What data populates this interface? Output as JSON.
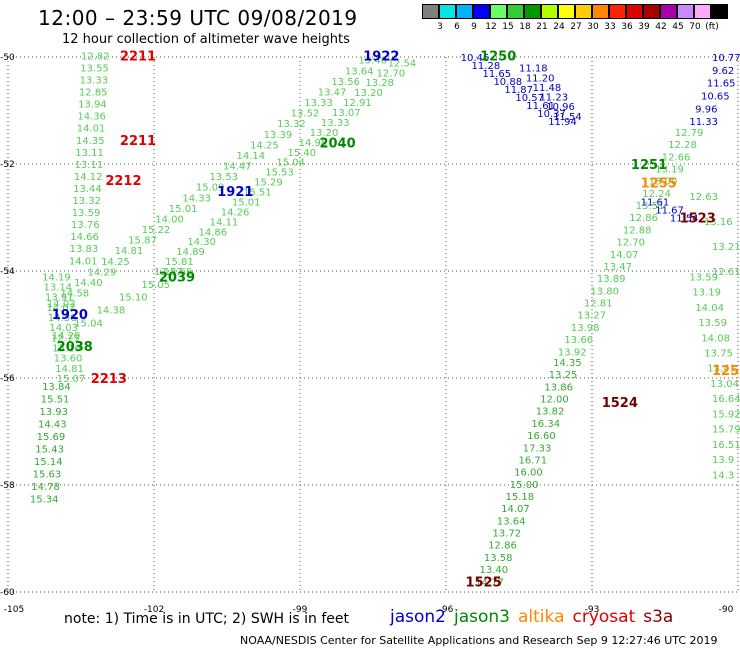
{
  "title": "12:00 – 23:59 UTC 09/08/2019",
  "subtitle": "12 hour collection of altimeter wave heights",
  "colorbar": {
    "colors": [
      "#7f7f7f",
      "#00e5e5",
      "#00b2ff",
      "#0000ff",
      "#66ff66",
      "#33cc33",
      "#009900",
      "#b3ff00",
      "#ffff00",
      "#ffcc00",
      "#ff8800",
      "#ff2200",
      "#dd0000",
      "#aa0000",
      "#aa00aa",
      "#cc88ff",
      "#ffaaff",
      "#000000"
    ],
    "labels": [
      "3",
      "6",
      "9",
      "12",
      "15",
      "18",
      "21",
      "24",
      "27",
      "30",
      "33",
      "36",
      "39",
      "42",
      "45",
      "70",
      "(ft)"
    ]
  },
  "axes": {
    "lon_labels": [
      "-105",
      "-102",
      "-99",
      "-96",
      "-93",
      "-90"
    ],
    "lat_labels": [
      "-50",
      "-52",
      "-54",
      "-56",
      "-58",
      "-60"
    ]
  },
  "track_labels": [
    {
      "text": "2211",
      "color": "#e00000",
      "lon": -102.7,
      "lat": -49.97
    },
    {
      "text": "2211",
      "color": "#e00000",
      "lon": -102.7,
      "lat": -51.55
    },
    {
      "text": "2212",
      "color": "#e00000",
      "lon": -103.0,
      "lat": -52.3
    },
    {
      "text": "2213",
      "color": "#e00000",
      "lon": -103.3,
      "lat": -56.0
    },
    {
      "text": "1922",
      "color": "#0000cc",
      "lon": -97.7,
      "lat": -49.97
    },
    {
      "text": "1921",
      "color": "#0000cc",
      "lon": -100.7,
      "lat": -52.5
    },
    {
      "text": "1920",
      "color": "#0000cc",
      "lon": -104.1,
      "lat": -54.8
    },
    {
      "text": "2040",
      "color": "#008800",
      "lon": -98.6,
      "lat": -51.6
    },
    {
      "text": "2039",
      "color": "#008800",
      "lon": -101.9,
      "lat": -54.1
    },
    {
      "text": "2038",
      "color": "#008800",
      "lon": -104.0,
      "lat": -55.4
    },
    {
      "text": "1250",
      "color": "#008800",
      "lon": -95.3,
      "lat": -49.97
    },
    {
      "text": "1251",
      "color": "#008800",
      "lon": -92.2,
      "lat": -52.0
    },
    {
      "text": "1255",
      "color": "#ff8800",
      "lon": -92.0,
      "lat": -52.35
    },
    {
      "text": "1523",
      "color": "#770000",
      "lon": -91.2,
      "lat": -53.0
    },
    {
      "text": "1524",
      "color": "#770000",
      "lon": -92.8,
      "lat": -56.45
    },
    {
      "text": "1525",
      "color": "#770000",
      "lon": -95.6,
      "lat": -59.8
    },
    {
      "text": "125",
      "color": "#ff8800",
      "lon": -90.5,
      "lat": -55.85
    }
  ],
  "tracks": [
    {
      "name": "col-A",
      "color": "#55cc55",
      "lon0": -103.5,
      "lat0": -49.97,
      "lon1": -103.75,
      "lat1": -53.8,
      "values": [
        "12.82",
        "13.55",
        "13.33",
        "12.85",
        "13.94",
        "14.36",
        "14.01",
        "14.35",
        "13.11",
        "13.11",
        "14.12",
        "13.44",
        "13.32",
        "13.59",
        "13.76",
        "14.66",
        "13.83",
        "14.01"
      ]
    },
    {
      "name": "col-B",
      "color": "#55cc55",
      "lon0": -104.3,
      "lat0": -54.1,
      "lon1": -104.0,
      "lat1": -56.0,
      "values": [
        "14.19",
        "13.14",
        "13.91",
        "14.02",
        "14.50",
        "14.03",
        "12.75",
        "15.16",
        "13.60",
        "14.81",
        "15.07"
      ]
    },
    {
      "name": "col-C",
      "color": "#33aa33",
      "lon0": -104.3,
      "lat0": -56.15,
      "lon1": -104.55,
      "lat1": -58.25,
      "values": [
        "13.84",
        "15.51",
        "13.93",
        "14.43",
        "15.69",
        "15.43",
        "15.14",
        "15.63",
        "14.78",
        "15.34"
      ]
    },
    {
      "name": "diag-1",
      "color": "#55cc55",
      "lon0": -97.8,
      "lat0": -50.05,
      "lon1": -104.2,
      "lat1": -54.6,
      "values": [
        "13.48",
        "13.64",
        "13.56",
        "13.47",
        "13.33",
        "13.52",
        "13.32",
        "13.39",
        "14.25",
        "14.14",
        "14.47",
        "13.53",
        "15.09",
        "14.33",
        "15.01",
        "14.00",
        "15.22",
        "15.87",
        "14.81",
        "14.25",
        "14.29",
        "14.40",
        "14.58",
        "14.03"
      ]
    },
    {
      "name": "diag-2",
      "color": "#55cc55",
      "lon0": -97.2,
      "lat0": -50.1,
      "lon1": -102.0,
      "lat1": -54.0,
      "values": [
        "12.54",
        "12.70",
        "13.28",
        "13.20",
        "12.91",
        "13.07",
        "13.33",
        "13.20",
        "14.98",
        "15.40",
        "15.04",
        "15.53",
        "15.29",
        "15.51",
        "15.01",
        "14.26",
        "14.11",
        "14.86",
        "14.30",
        "14.89",
        "15.81",
        "12.57"
      ]
    },
    {
      "name": "diag-3",
      "color": "#55cc55",
      "lon0": -101.8,
      "lat0": -54.0,
      "lon1": -104.1,
      "lat1": -55.2,
      "values": [
        "13.69",
        "15.05",
        "15.10",
        "14.38",
        "15.04",
        "14.29"
      ]
    },
    {
      "name": "desc-jason2",
      "color": "#0000cc",
      "lon0": -95.7,
      "lat0": -50.0,
      "lon1": -93.9,
      "lat1": -51.2,
      "values": [
        "10.46",
        "11.28",
        "11.65",
        "10.88",
        "11.87",
        "10.57",
        "11.61",
        "10.37",
        "11.94"
      ]
    },
    {
      "name": "desc-jason2b",
      "color": "#0000cc",
      "lon0": -94.5,
      "lat0": -50.2,
      "lon1": -93.8,
      "lat1": -51.1,
      "values": [
        "11.18",
        "11.20",
        "11.48",
        "11.23",
        "10.96",
        "11.54"
      ]
    },
    {
      "name": "asc-jason2",
      "color": "#0000cc",
      "lon0": -90.4,
      "lat0": -50.0,
      "lon1": -91.0,
      "lat1": -51.2,
      "values": [
        "10.77",
        "9.62",
        "11.65",
        "10.65",
        "9.96",
        "11.33"
      ]
    },
    {
      "name": "mid-green",
      "color": "#55cc55",
      "lon0": -91.3,
      "lat0": -51.4,
      "lon1": -93.7,
      "lat1": -55.5,
      "values": [
        "12.79",
        "12.28",
        "12.66",
        "13.19",
        "13.00",
        "12.24",
        "13.51",
        "12.86",
        "12.88",
        "12.70",
        "14.07",
        "13.47",
        "13.89",
        "13.80",
        "12.81",
        "13.27",
        "13.98",
        "13.66",
        "13.92"
      ]
    },
    {
      "name": "right-green",
      "color": "#55cc55",
      "lon0": -91.0,
      "lat0": -52.6,
      "lon1": -90.1,
      "lat1": -54.0,
      "values": [
        "12.63",
        "13.16",
        "13.21",
        "12.61"
      ]
    },
    {
      "name": "low-green",
      "color": "#55cc55",
      "lon0": -91.0,
      "lat0": -54.1,
      "lon1": -90.2,
      "lat1": -57.8,
      "values": [
        "13.59",
        "13.19",
        "14.04",
        "13.59",
        "14.08",
        "13.75",
        "13.41",
        "13.04",
        "16.64",
        "15.92",
        "15.79",
        "16.51",
        "13.9",
        "14.3"
      ]
    },
    {
      "name": "center-green",
      "color": "#33aa33",
      "lon0": -93.8,
      "lat0": -55.7,
      "lon1": -95.4,
      "lat1": -59.8,
      "values": [
        "14.35",
        "13.25",
        "13.86",
        "12.00",
        "13.82",
        "16.34",
        "16.60",
        "17.33",
        "16.71",
        "16.00",
        "15.00",
        "15.18",
        "14.07",
        "13.64",
        "13.72",
        "12.86",
        "13.58",
        "13.40",
        "14.77"
      ]
    },
    {
      "name": "mid-right",
      "color": "#0000cc",
      "lon0": -92.0,
      "lat0": -52.7,
      "lon1": -91.4,
      "lat1": -53.0,
      "values": [
        "11.61",
        "11.67",
        "11.54"
      ]
    }
  ],
  "footnote": "note:  1) Time is in UTC;  2) SWH is in feet",
  "legend": [
    {
      "label": "jason2",
      "color": "#0000cc"
    },
    {
      "label": "jason3",
      "color": "#008800"
    },
    {
      "label": "altika",
      "color": "#ff8800"
    },
    {
      "label": "cryosat",
      "color": "#dd0000"
    },
    {
      "label": "s3a",
      "color": "#880000"
    }
  ],
  "credit": "NOAA/NESDIS Center for Satellite Applications and Research    Sep  9 12:27:46 UTC 2019"
}
